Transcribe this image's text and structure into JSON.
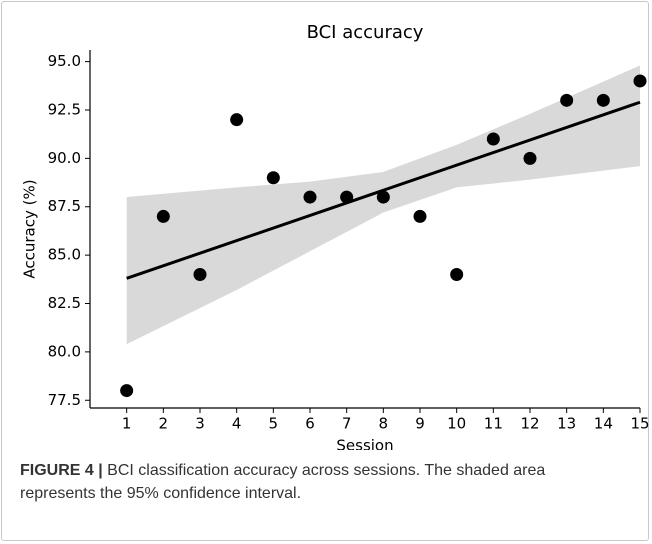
{
  "chart_data": {
    "type": "scatter",
    "title": "BCI accuracy",
    "x_label": "Session",
    "y_label": "Accuracy (%)",
    "x": [
      1,
      2,
      3,
      4,
      5,
      6,
      7,
      8,
      9,
      10,
      11,
      12,
      13,
      14,
      15
    ],
    "values": [
      78,
      87,
      84,
      92,
      89,
      88,
      88,
      88,
      87,
      84,
      91,
      90,
      93,
      93,
      94
    ],
    "color": "#000000",
    "fit": {
      "x": [
        1,
        15
      ],
      "values": [
        83.8,
        92.9
      ],
      "color": "#000000"
    },
    "band": {
      "x": [
        1,
        4,
        6,
        8,
        10,
        12,
        15
      ],
      "upper": [
        88.0,
        88.5,
        88.8,
        89.3,
        90.7,
        92.3,
        94.8
      ],
      "lower": [
        80.4,
        83.2,
        85.2,
        87.2,
        88.5,
        88.9,
        89.6
      ],
      "color": "#d9d9d9"
    },
    "xlim": [
      0,
      15
    ],
    "ylim": [
      77.1,
      95.6
    ],
    "xticks": [
      1,
      2,
      3,
      4,
      5,
      6,
      7,
      8,
      9,
      10,
      11,
      12,
      13,
      14,
      15
    ],
    "yticks": [
      {
        "value": 77.5,
        "label": "77.5"
      },
      {
        "value": 80,
        "label": "80.0"
      },
      82.5,
      {
        "value": 85,
        "label": "85.0"
      },
      87.5,
      {
        "value": 90,
        "label": "90.0"
      },
      92.5,
      {
        "value": 95,
        "label": "95.0"
      }
    ]
  },
  "caption": {
    "label": "FIGURE 4 |",
    "text": "BCI classification accuracy across sessions. The shaded area represents the 95% confidence interval."
  }
}
